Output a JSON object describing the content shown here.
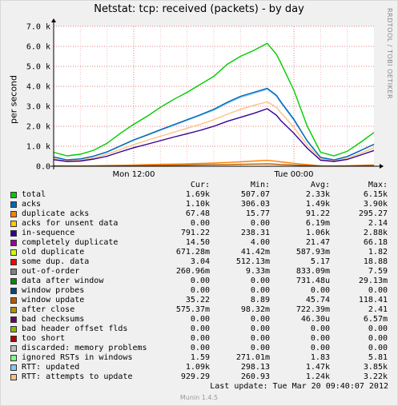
{
  "title": "Netstat: tcp: received (packets) - by day",
  "ylabel": "per second",
  "sidetext": "RRDTOOL / TOBI OETIKER",
  "last_update": "Last update:  Tue Mar 20 09:40:07 2012",
  "munin_version": "Munin 1.4.5",
  "legend_headers": {
    "cur": "Cur:",
    "min": "Min:",
    "avg": "Avg:",
    "max": "Max:"
  },
  "legend": [
    {
      "name": "total",
      "color": "#00cc00",
      "cur": "1.69k",
      "min": "507.07",
      "avg": "2.33k",
      "max": "6.15k"
    },
    {
      "name": "acks",
      "color": "#0066b3",
      "cur": "1.10k",
      "min": "306.03",
      "avg": "1.49k",
      "max": "3.90k"
    },
    {
      "name": "duplicate acks",
      "color": "#ff8000",
      "cur": "67.48",
      "min": "15.77",
      "avg": "91.22",
      "max": "295.27"
    },
    {
      "name": "acks for unsent data",
      "color": "#ffcc00",
      "cur": "0.00",
      "min": "0.00",
      "avg": "6.19m",
      "max": "2.14"
    },
    {
      "name": "in-sequence",
      "color": "#330099",
      "cur": "791.22",
      "min": "238.31",
      "avg": "1.06k",
      "max": "2.88k"
    },
    {
      "name": "completely duplicate",
      "color": "#990099",
      "cur": "14.50",
      "min": "4.00",
      "avg": "21.47",
      "max": "66.18"
    },
    {
      "name": "old duplicate",
      "color": "#ccff00",
      "cur": "671.28m",
      "min": "41.42m",
      "avg": "587.93m",
      "max": "1.82"
    },
    {
      "name": "some dup. data",
      "color": "#ff0000",
      "cur": "3.04",
      "min": "512.13m",
      "avg": "5.17",
      "max": "18.88"
    },
    {
      "name": "out-of-order",
      "color": "#808080",
      "cur": "260.96m",
      "min": "9.33m",
      "avg": "833.09m",
      "max": "7.59"
    },
    {
      "name": "data after window",
      "color": "#008f00",
      "cur": "0.00",
      "min": "0.00",
      "avg": "731.48u",
      "max": "29.13m"
    },
    {
      "name": "window probes",
      "color": "#00487d",
      "cur": "0.00",
      "min": "0.00",
      "avg": "0.00",
      "max": "0.00"
    },
    {
      "name": "window update",
      "color": "#b35a00",
      "cur": "35.22",
      "min": "8.89",
      "avg": "45.74",
      "max": "118.41"
    },
    {
      "name": "after close",
      "color": "#b38f00",
      "cur": "575.37m",
      "min": "98.32m",
      "avg": "722.39m",
      "max": "2.41"
    },
    {
      "name": "bad checksums",
      "color": "#6b006b",
      "cur": "0.00",
      "min": "0.00",
      "avg": "46.30u",
      "max": "6.57m"
    },
    {
      "name": "bad header offset flds",
      "color": "#8fb300",
      "cur": "0.00",
      "min": "0.00",
      "avg": "0.00",
      "max": "0.00"
    },
    {
      "name": "too short",
      "color": "#b30000",
      "cur": "0.00",
      "min": "0.00",
      "avg": "0.00",
      "max": "0.00"
    },
    {
      "name": "discarded: memory problems",
      "color": "#bebebe",
      "cur": "0.00",
      "min": "0.00",
      "avg": "0.00",
      "max": "0.00"
    },
    {
      "name": "ignored RSTs in windows",
      "color": "#80ff80",
      "cur": "1.59",
      "min": "271.01m",
      "avg": "1.83",
      "max": "5.81"
    },
    {
      "name": "RTT: updated",
      "color": "#80c9ff",
      "cur": "1.09k",
      "min": "298.13",
      "avg": "1.47k",
      "max": "3.85k"
    },
    {
      "name": "RTT: attempts to update",
      "color": "#ffc080",
      "cur": "929.29",
      "min": "260.93",
      "avg": "1.24k",
      "max": "3.22k"
    }
  ],
  "chart_data": {
    "type": "line",
    "title": "Netstat: tcp: received (packets) - by day",
    "ylabel": "per second",
    "ylim": [
      0,
      7000
    ],
    "yticks": [
      "0.0",
      "1.0 k",
      "2.0 k",
      "3.0 k",
      "4.0 k",
      "5.0 k",
      "6.0 k",
      "7.0 k"
    ],
    "ytick_values": [
      0,
      1000,
      2000,
      3000,
      4000,
      5000,
      6000,
      7000
    ],
    "xticks": [
      "Mon 12:00",
      "Tue 00:00"
    ],
    "xtick_hours": [
      6,
      18
    ],
    "x_hours": [
      0,
      1,
      2,
      3,
      4,
      5,
      6,
      7,
      8,
      9,
      10,
      11,
      12,
      13,
      14,
      15,
      16,
      16.7,
      17,
      18,
      19,
      20,
      21,
      22,
      23,
      24
    ],
    "series": [
      {
        "name": "total",
        "color": "#00cc00",
        "values": [
          700,
          520,
          600,
          800,
          1150,
          1650,
          2100,
          2500,
          2950,
          3350,
          3700,
          4100,
          4500,
          5100,
          5500,
          5800,
          6150,
          5600,
          5200,
          3800,
          2000,
          700,
          520,
          750,
          1200,
          1690
        ]
      },
      {
        "name": "RTT: updated",
        "color": "#80c9ff",
        "values": [
          460,
          310,
          360,
          500,
          700,
          1000,
          1300,
          1550,
          1800,
          2050,
          2300,
          2550,
          2800,
          3150,
          3450,
          3650,
          3850,
          3500,
          3200,
          2300,
          1250,
          430,
          310,
          480,
          780,
          1090
        ]
      },
      {
        "name": "acks",
        "color": "#0066b3",
        "values": [
          470,
          320,
          370,
          510,
          720,
          1020,
          1320,
          1570,
          1830,
          2080,
          2330,
          2580,
          2850,
          3200,
          3500,
          3700,
          3900,
          3550,
          3250,
          2350,
          1270,
          440,
          320,
          490,
          790,
          1100
        ]
      },
      {
        "name": "RTT: attempts to update",
        "color": "#ffc080",
        "values": [
          390,
          270,
          300,
          420,
          600,
          840,
          1080,
          1300,
          1500,
          1700,
          1900,
          2100,
          2330,
          2600,
          2850,
          3050,
          3220,
          2950,
          2700,
          1950,
          1050,
          360,
          270,
          400,
          650,
          930
        ]
      },
      {
        "name": "in-sequence",
        "color": "#330099",
        "values": [
          330,
          240,
          260,
          360,
          500,
          720,
          930,
          1100,
          1280,
          1460,
          1630,
          1800,
          2000,
          2250,
          2450,
          2650,
          2880,
          2550,
          2300,
          1650,
          900,
          300,
          240,
          340,
          560,
          790
        ]
      },
      {
        "name": "duplicate acks",
        "color": "#ff8000",
        "values": [
          25,
          16,
          18,
          25,
          35,
          50,
          65,
          80,
          95,
          110,
          125,
          140,
          160,
          190,
          220,
          260,
          295,
          250,
          220,
          150,
          80,
          25,
          16,
          30,
          50,
          67
        ]
      },
      {
        "name": "window update",
        "color": "#b35a00",
        "values": [
          12,
          9,
          10,
          14,
          18,
          25,
          30,
          38,
          45,
          52,
          60,
          68,
          75,
          85,
          95,
          108,
          118,
          100,
          90,
          65,
          35,
          12,
          9,
          14,
          25,
          35
        ]
      }
    ]
  }
}
